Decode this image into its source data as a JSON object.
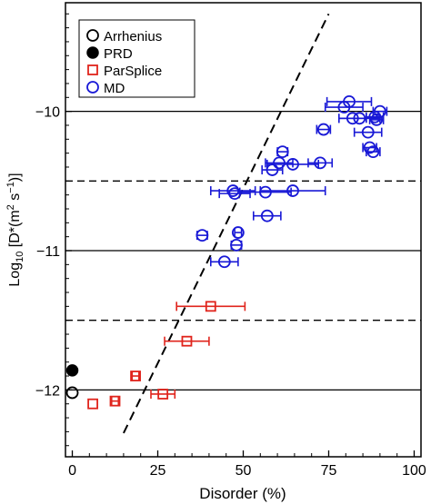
{
  "chart_data": {
    "type": "scatter",
    "title": "",
    "xlabel": "Disorder (%)",
    "ylabel": {
      "prefix": "Log",
      "sub": "10",
      "bracket": " [D*(m",
      "sup1": "2",
      "mid": " s",
      "sup2": "−1",
      "end": ")]"
    },
    "xlim": [
      -2,
      102
    ],
    "ylim": [
      -12.48,
      -9.22
    ],
    "xticks": [
      0,
      25,
      50,
      75,
      100
    ],
    "xtick_labels": [
      "0",
      "25",
      "50",
      "75",
      "100"
    ],
    "yticks": [
      -12,
      -11,
      -10
    ],
    "ytick_labels": [
      "−12",
      "−11",
      "−10"
    ],
    "hlines_solid": [
      -12,
      -11,
      -10
    ],
    "hlines_dashed": [
      -11.5,
      -10.5
    ],
    "fit_line": {
      "x": [
        15,
        75
      ],
      "y": [
        -12.31,
        -9.3
      ]
    },
    "legend": {
      "placement": "top-left",
      "entries": [
        {
          "label": "Arrhenius",
          "marker": "circle-open",
          "color": "#000000"
        },
        {
          "label": "PRD",
          "marker": "circle-filled",
          "color": "#000000"
        },
        {
          "label": "ParSplice",
          "marker": "square-open",
          "color": "#e0241c"
        },
        {
          "label": "MD",
          "marker": "circle-open",
          "color": "#1919d6"
        }
      ]
    },
    "series": [
      {
        "name": "Arrhenius",
        "marker": "circle-open",
        "color": "#000000",
        "points": [
          {
            "x": 0,
            "y": -12.02
          }
        ]
      },
      {
        "name": "PRD",
        "marker": "circle-filled",
        "color": "#000000",
        "points": [
          {
            "x": 0,
            "y": -11.86
          }
        ]
      },
      {
        "name": "ParSplice",
        "marker": "square-open",
        "color": "#e0241c",
        "points": [
          {
            "x": 6,
            "y": -12.1,
            "xerr": [
              0,
              0
            ]
          },
          {
            "x": 12.5,
            "y": -12.08,
            "xerr": [
              1,
              1
            ]
          },
          {
            "x": 18.5,
            "y": -11.9,
            "xerr": [
              1,
              1
            ]
          },
          {
            "x": 26.5,
            "y": -12.03,
            "xerr": [
              3.5,
              3.5
            ]
          },
          {
            "x": 33.5,
            "y": -11.65,
            "xerr": [
              6.5,
              6.5
            ]
          },
          {
            "x": 40.5,
            "y": -11.4,
            "xerr": [
              10,
              10
            ]
          }
        ]
      },
      {
        "name": "MD",
        "marker": "circle-open",
        "color": "#1919d6",
        "points": [
          {
            "x": 38,
            "y": -10.89,
            "xerr": [
              1.5,
              1.5
            ]
          },
          {
            "x": 44.5,
            "y": -11.08,
            "xerr": [
              4,
              4
            ]
          },
          {
            "x": 48,
            "y": -10.96,
            "xerr": [
              1.5,
              1.5
            ]
          },
          {
            "x": 48.5,
            "y": -10.87,
            "xerr": [
              1,
              1
            ]
          },
          {
            "x": 47,
            "y": -10.57,
            "xerr": [
              6.5,
              6.5
            ]
          },
          {
            "x": 47.5,
            "y": -10.59,
            "xerr": [
              4.5,
              4.5
            ]
          },
          {
            "x": 56.5,
            "y": -10.58,
            "xerr": [
              7.5,
              7.5
            ]
          },
          {
            "x": 57,
            "y": -10.75,
            "xerr": [
              4,
              4
            ]
          },
          {
            "x": 58.5,
            "y": -10.42,
            "xerr": [
              3,
              3
            ]
          },
          {
            "x": 60.5,
            "y": -10.37,
            "xerr": [
              4,
              4
            ]
          },
          {
            "x": 61.5,
            "y": -10.29,
            "xerr": [
              1.5,
              1.5
            ]
          },
          {
            "x": 64.5,
            "y": -10.57,
            "xerr": [
              9.5,
              9.5
            ]
          },
          {
            "x": 64.5,
            "y": -10.38,
            "xerr": [
              7.5,
              7.5
            ]
          },
          {
            "x": 72.5,
            "y": -10.37,
            "xerr": [
              3.5,
              3.5
            ]
          },
          {
            "x": 73.5,
            "y": -10.13,
            "xerr": [
              2,
              2
            ]
          },
          {
            "x": 81,
            "y": -9.93,
            "xerr": [
              6.5,
              6.5
            ]
          },
          {
            "x": 79.5,
            "y": -9.97,
            "xerr": [
              5.5,
              5.5
            ]
          },
          {
            "x": 82,
            "y": -10.05,
            "xerr": [
              4,
              4
            ]
          },
          {
            "x": 84,
            "y": -10.05,
            "xerr": [
              6,
              6
            ]
          },
          {
            "x": 88.5,
            "y": -10.04,
            "xerr": [
              2.5,
              2.5
            ]
          },
          {
            "x": 89,
            "y": -10.06,
            "xerr": [
              2,
              2
            ]
          },
          {
            "x": 90,
            "y": -10.0,
            "xerr": [
              2,
              2
            ]
          },
          {
            "x": 86.5,
            "y": -10.15,
            "xerr": [
              4,
              4
            ]
          },
          {
            "x": 87,
            "y": -10.26,
            "xerr": [
              2,
              2
            ]
          },
          {
            "x": 88,
            "y": -10.29,
            "xerr": [
              2,
              2
            ]
          }
        ]
      }
    ]
  }
}
